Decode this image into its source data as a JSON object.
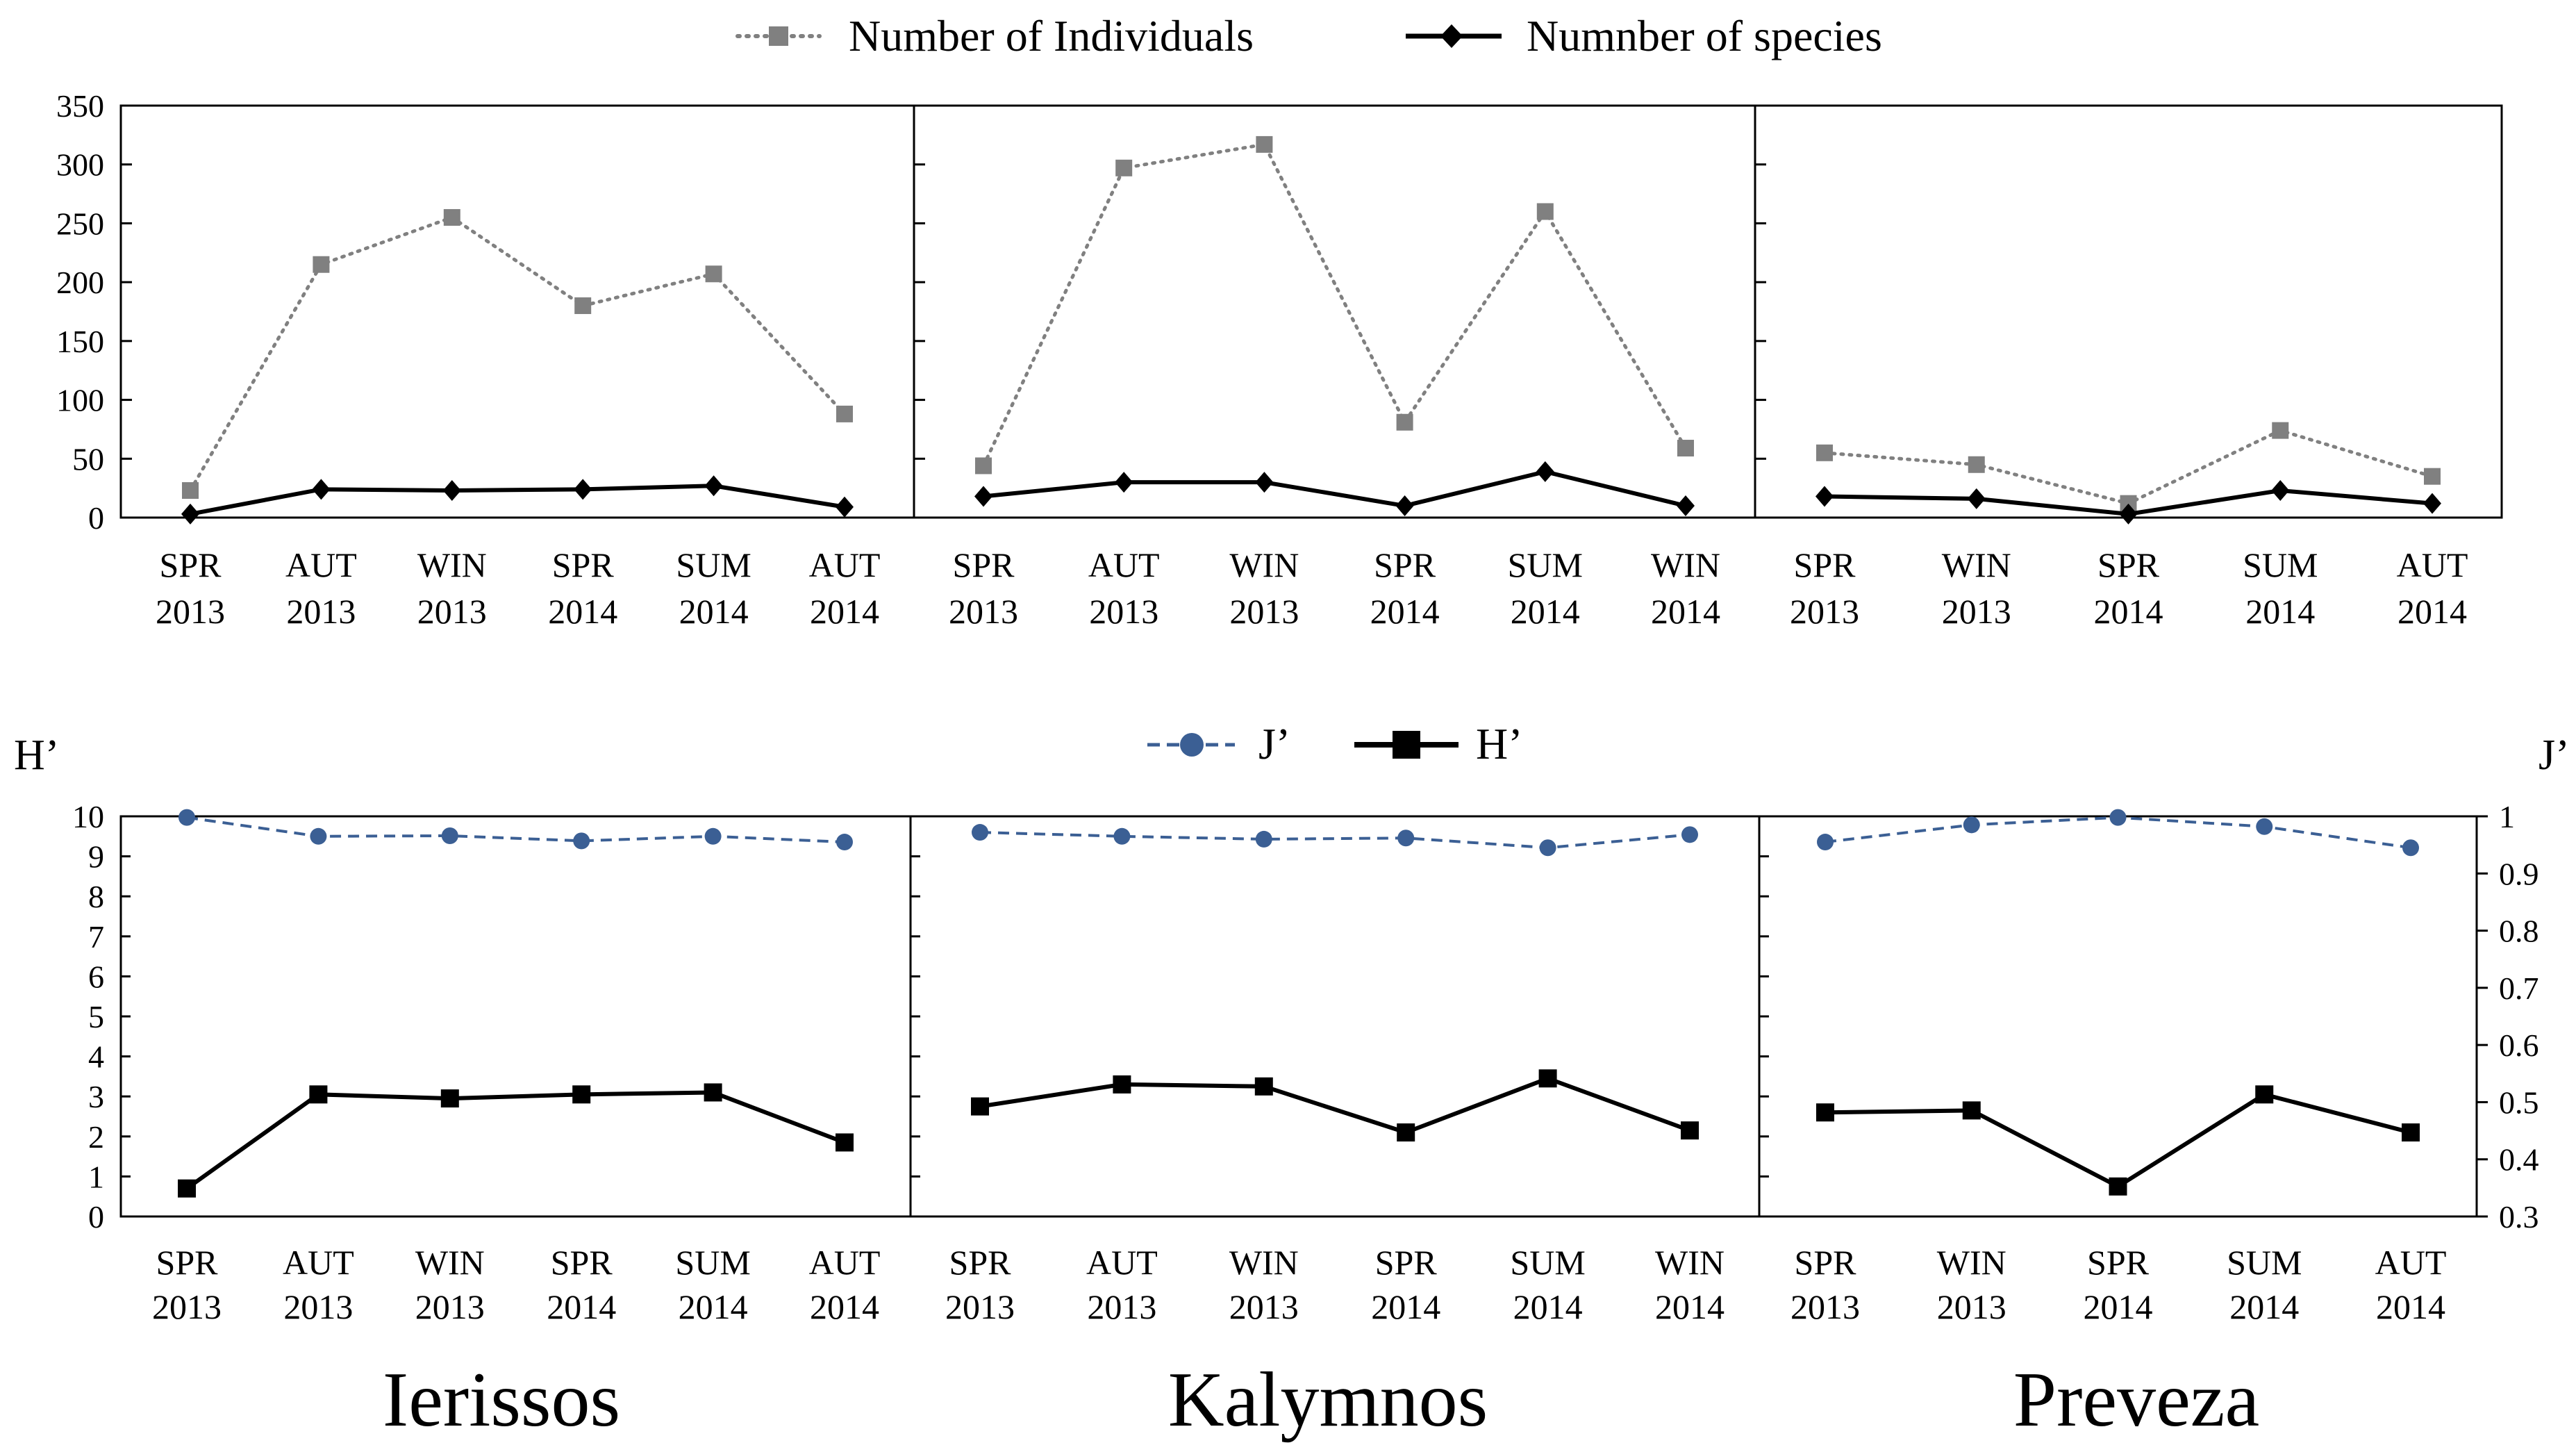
{
  "chart_data": [
    {
      "type": "line",
      "id": "abundance",
      "title": "",
      "ylabel": "",
      "ylim": [
        0,
        350
      ],
      "yticks": [
        0,
        50,
        100,
        150,
        200,
        250,
        300,
        350
      ],
      "legend": {
        "placement": "top-center",
        "items": [
          {
            "name": "Number of Individuals",
            "color": "#808080",
            "marker": "square",
            "line": "dotted"
          },
          {
            "name": "Numnber of species",
            "color": "#000000",
            "marker": "diamond",
            "line": "solid"
          }
        ]
      },
      "panels": [
        {
          "location": "Ierissos",
          "categories": [
            [
              "SPR",
              "2013"
            ],
            [
              "AUT",
              "2013"
            ],
            [
              "WIN",
              "2013"
            ],
            [
              "SPR",
              "2014"
            ],
            [
              "SUM",
              "2014"
            ],
            [
              "AUT",
              "2014"
            ]
          ],
          "series": [
            {
              "name": "Number of Individuals",
              "values": [
                23,
                215,
                255,
                180,
                207,
                88
              ]
            },
            {
              "name": "Numnber of species",
              "values": [
                3,
                24,
                23,
                24,
                27,
                9
              ]
            }
          ]
        },
        {
          "location": "Kalymnos",
          "categories": [
            [
              "SPR",
              "2013"
            ],
            [
              "AUT",
              "2013"
            ],
            [
              "WIN",
              "2013"
            ],
            [
              "SPR",
              "2014"
            ],
            [
              "SUM",
              "2014"
            ],
            [
              "WIN",
              "2014"
            ]
          ],
          "series": [
            {
              "name": "Number of Individuals",
              "values": [
                44,
                297,
                317,
                81,
                260,
                59
              ]
            },
            {
              "name": "Numnber of species",
              "values": [
                18,
                30,
                30,
                10,
                39,
                10
              ]
            }
          ]
        },
        {
          "location": "Preveza",
          "categories": [
            [
              "SPR",
              "2013"
            ],
            [
              "WIN",
              "2013"
            ],
            [
              "SPR",
              "2014"
            ],
            [
              "SUM",
              "2014"
            ],
            [
              "AUT",
              "2014"
            ]
          ],
          "series": [
            {
              "name": "Number of Individuals",
              "values": [
                55,
                45,
                12,
                74,
                35
              ]
            },
            {
              "name": "Numnber of species",
              "values": [
                18,
                16,
                3,
                23,
                12
              ]
            }
          ]
        }
      ]
    },
    {
      "type": "line",
      "id": "diversity",
      "title": "",
      "ylabel_left": "H’",
      "ylabel_right": "J’",
      "ylim_left": [
        0,
        10
      ],
      "ylim_right": [
        0.3,
        1
      ],
      "yticks_left": [
        0,
        1,
        2,
        3,
        4,
        5,
        6,
        7,
        8,
        9,
        10
      ],
      "yticks_right": [
        "0.3",
        "0.4",
        "0.5",
        "0.6",
        "0.7",
        "0.8",
        "0.9",
        "1"
      ],
      "legend": {
        "placement": "top-center",
        "items": [
          {
            "name": "J’",
            "color": "#3b5f94",
            "marker": "circle",
            "line": "dashed",
            "axis": "right"
          },
          {
            "name": "H’",
            "color": "#000000",
            "marker": "square",
            "line": "solid",
            "axis": "left"
          }
        ]
      },
      "panels": [
        {
          "location": "Ierissos",
          "categories": [
            [
              "SPR",
              "2013"
            ],
            [
              "AUT",
              "2013"
            ],
            [
              "WIN",
              "2013"
            ],
            [
              "SPR",
              "2014"
            ],
            [
              "SUM",
              "2014"
            ],
            [
              "AUT",
              "2014"
            ]
          ],
          "series": [
            {
              "name": "J’",
              "axis": "right",
              "values": [
                0.998,
                0.965,
                0.966,
                0.957,
                0.965,
                0.955
              ]
            },
            {
              "name": "H’",
              "axis": "left",
              "values": [
                0.7,
                3.05,
                2.95,
                3.05,
                3.1,
                1.85
              ]
            }
          ]
        },
        {
          "location": "Kalymnos",
          "categories": [
            [
              "SPR",
              "2013"
            ],
            [
              "AUT",
              "2013"
            ],
            [
              "WIN",
              "2013"
            ],
            [
              "SPR",
              "2014"
            ],
            [
              "SUM",
              "2014"
            ],
            [
              "WIN",
              "2014"
            ]
          ],
          "series": [
            {
              "name": "J’",
              "axis": "right",
              "values": [
                0.972,
                0.965,
                0.96,
                0.962,
                0.945,
                0.968
              ]
            },
            {
              "name": "H’",
              "axis": "left",
              "values": [
                2.75,
                3.3,
                3.25,
                2.1,
                3.45,
                2.15
              ]
            }
          ]
        },
        {
          "location": "Preveza",
          "categories": [
            [
              "SPR",
              "2013"
            ],
            [
              "WIN",
              "2013"
            ],
            [
              "SPR",
              "2014"
            ],
            [
              "SUM",
              "2014"
            ],
            [
              "AUT",
              "2014"
            ]
          ],
          "series": [
            {
              "name": "J’",
              "axis": "right",
              "values": [
                0.955,
                0.985,
                0.998,
                0.982,
                0.945
              ]
            },
            {
              "name": "H’",
              "axis": "left",
              "values": [
                2.6,
                2.65,
                0.75,
                3.05,
                2.1
              ]
            }
          ]
        }
      ]
    }
  ],
  "locations": [
    "Ierissos",
    "Kalymnos",
    "Preveza"
  ]
}
